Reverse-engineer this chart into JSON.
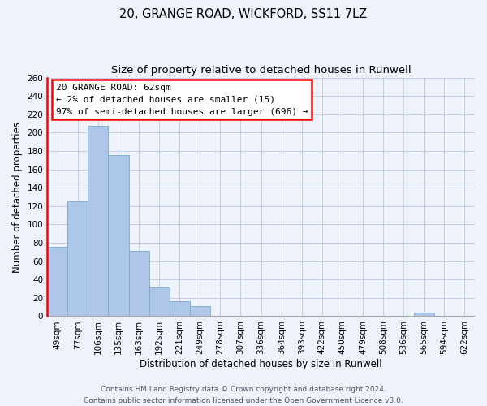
{
  "title": "20, GRANGE ROAD, WICKFORD, SS11 7LZ",
  "subtitle": "Size of property relative to detached houses in Runwell",
  "xlabel": "Distribution of detached houses by size in Runwell",
  "ylabel": "Number of detached properties",
  "categories": [
    "49sqm",
    "77sqm",
    "106sqm",
    "135sqm",
    "163sqm",
    "192sqm",
    "221sqm",
    "249sqm",
    "278sqm",
    "307sqm",
    "336sqm",
    "364sqm",
    "393sqm",
    "422sqm",
    "450sqm",
    "479sqm",
    "508sqm",
    "536sqm",
    "565sqm",
    "594sqm",
    "622sqm"
  ],
  "values": [
    76,
    125,
    207,
    176,
    71,
    31,
    16,
    11,
    0,
    0,
    0,
    0,
    0,
    0,
    0,
    0,
    0,
    0,
    4,
    0,
    0
  ],
  "bar_color": "#aec6e8",
  "bar_edge_color": "#7aaad0",
  "highlight_color": "#ff0000",
  "ylim": [
    0,
    260
  ],
  "yticks": [
    0,
    20,
    40,
    60,
    80,
    100,
    120,
    140,
    160,
    180,
    200,
    220,
    240,
    260
  ],
  "annotation_line1": "20 GRANGE ROAD: 62sqm",
  "annotation_line2": "← 2% of detached houses are smaller (15)",
  "annotation_line3": "97% of semi-detached houses are larger (696) →",
  "footer_line1": "Contains HM Land Registry data © Crown copyright and database right 2024.",
  "footer_line2": "Contains public sector information licensed under the Open Government Licence v3.0.",
  "background_color": "#eef2fb",
  "grid_color": "#c5cde8",
  "title_fontsize": 10.5,
  "subtitle_fontsize": 9.5,
  "axis_label_fontsize": 8.5,
  "tick_fontsize": 7.5,
  "annotation_fontsize": 8,
  "footer_fontsize": 6.5
}
